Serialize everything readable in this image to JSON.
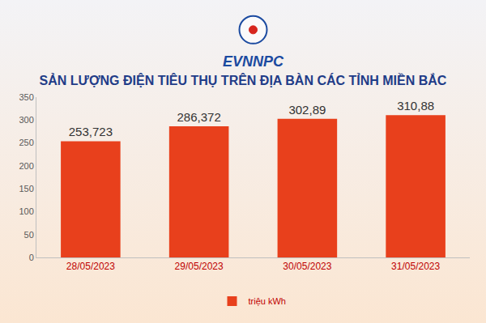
{
  "chart_data": {
    "type": "bar",
    "title": "SẢN LƯỢNG ĐIỆN TIÊU THỤ TRÊN ĐỊA BÀN CÁC TỈNH MIỀN BẮC",
    "annotations": [
      "EVNNPC"
    ],
    "categories": [
      "28/05/2023",
      "29/05/2023",
      "30/05/2023",
      "31/05/2023"
    ],
    "series": [
      {
        "name": "triệu kWh",
        "color": "#e8401c",
        "values": [
          253.723,
          286.372,
          302.89,
          310.88
        ],
        "value_labels": [
          "253,723",
          "286,372",
          "302,89",
          "310,88"
        ]
      }
    ],
    "ylim": [
      0,
      350
    ],
    "yticks": [
      0,
      50,
      100,
      150,
      200,
      250,
      300,
      350
    ],
    "grid": false,
    "legend": "bottom",
    "data_labels": true
  }
}
